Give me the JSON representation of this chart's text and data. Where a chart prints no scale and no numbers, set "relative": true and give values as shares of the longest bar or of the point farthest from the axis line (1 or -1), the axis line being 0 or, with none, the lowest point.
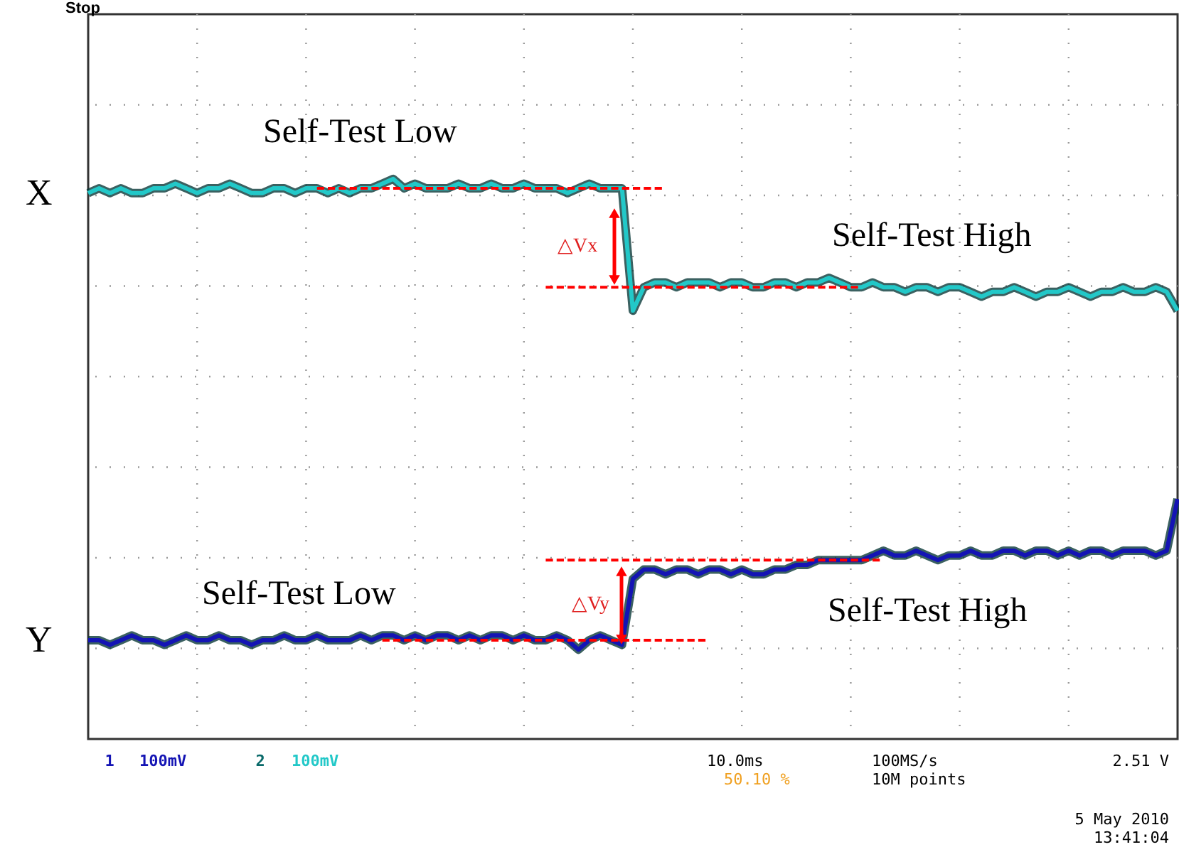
{
  "chart_data": {
    "type": "line",
    "relative": true,
    "grid": true,
    "legend": false,
    "marker": "none",
    "line_style": "solid",
    "categories": [
      null,
      null,
      null,
      null,
      null,
      null,
      null,
      null,
      null,
      null,
      null,
      null,
      null,
      null,
      null,
      null,
      null,
      null,
      null,
      null,
      null,
      null,
      null,
      null,
      null,
      null,
      null,
      null,
      null,
      null,
      null,
      null,
      null,
      null,
      null,
      null,
      null,
      null,
      null,
      null,
      null,
      null,
      null,
      null,
      null,
      null,
      null,
      null,
      null,
      null,
      null,
      null,
      null,
      null,
      null,
      null,
      null,
      null,
      null,
      null,
      null,
      null,
      null,
      null,
      null,
      null,
      null,
      null,
      null,
      null,
      null,
      null,
      null,
      null,
      null,
      null,
      null,
      null,
      null,
      null,
      null,
      null,
      null,
      null,
      null,
      null,
      null,
      null,
      null,
      null,
      null,
      null,
      null,
      null,
      null,
      null,
      null,
      null,
      null,
      null,
      null
    ],
    "series": [
      {
        "name": "X",
        "color": "#22c8c8",
        "values": [
          0.97,
          0.98,
          0.97,
          0.98,
          0.97,
          0.97,
          0.98,
          0.98,
          0.99,
          0.98,
          0.97,
          0.98,
          0.98,
          0.99,
          0.98,
          0.97,
          0.97,
          0.98,
          0.98,
          0.97,
          0.98,
          0.98,
          0.97,
          0.98,
          0.97,
          0.98,
          0.98,
          0.99,
          1.0,
          0.98,
          0.99,
          0.98,
          0.98,
          0.98,
          0.99,
          0.98,
          0.98,
          0.99,
          0.98,
          0.98,
          0.99,
          0.98,
          0.98,
          0.98,
          0.97,
          0.98,
          0.99,
          0.98,
          0.98,
          0.98,
          0.72,
          0.77,
          0.78,
          0.78,
          0.77,
          0.78,
          0.78,
          0.78,
          0.77,
          0.78,
          0.78,
          0.77,
          0.77,
          0.78,
          0.78,
          0.77,
          0.78,
          0.78,
          0.79,
          0.78,
          0.77,
          0.77,
          0.78,
          0.77,
          0.77,
          0.76,
          0.77,
          0.77,
          0.76,
          0.77,
          0.77,
          0.76,
          0.75,
          0.76,
          0.76,
          0.77,
          0.76,
          0.75,
          0.76,
          0.76,
          0.77,
          0.76,
          0.75,
          0.76,
          0.76,
          0.77,
          0.76,
          0.76,
          0.77,
          0.76,
          0.72
        ]
      },
      {
        "name": "Y",
        "color": "#1414b4",
        "values": [
          0.02,
          0.02,
          0.01,
          0.02,
          0.03,
          0.02,
          0.02,
          0.01,
          0.02,
          0.03,
          0.02,
          0.02,
          0.03,
          0.02,
          0.02,
          0.01,
          0.02,
          0.02,
          0.03,
          0.02,
          0.02,
          0.03,
          0.02,
          0.02,
          0.02,
          0.03,
          0.02,
          0.03,
          0.03,
          0.02,
          0.03,
          0.02,
          0.03,
          0.03,
          0.02,
          0.03,
          0.02,
          0.03,
          0.03,
          0.02,
          0.03,
          0.02,
          0.02,
          0.03,
          0.02,
          0.0,
          0.02,
          0.03,
          0.02,
          0.01,
          0.15,
          0.17,
          0.17,
          0.16,
          0.17,
          0.17,
          0.16,
          0.17,
          0.17,
          0.16,
          0.17,
          0.16,
          0.16,
          0.17,
          0.17,
          0.18,
          0.18,
          0.19,
          0.19,
          0.19,
          0.19,
          0.19,
          0.2,
          0.21,
          0.2,
          0.2,
          0.21,
          0.2,
          0.19,
          0.2,
          0.2,
          0.21,
          0.2,
          0.2,
          0.21,
          0.21,
          0.2,
          0.21,
          0.21,
          0.2,
          0.21,
          0.2,
          0.21,
          0.21,
          0.2,
          0.21,
          0.21,
          0.21,
          0.2,
          0.21,
          0.32
        ]
      },
      {
        "color": "#ff0000",
        "line_style": "dashed",
        "values": [
          null,
          null,
          null,
          null,
          null,
          null,
          null,
          null,
          null,
          null,
          null,
          null,
          null,
          null,
          null,
          null,
          null,
          null,
          null,
          null,
          null,
          0.98,
          0.98,
          0.98,
          0.98,
          0.98,
          0.98,
          0.98,
          0.98,
          0.98,
          0.98,
          0.98,
          0.98,
          0.98,
          0.98,
          0.98,
          0.98,
          0.98,
          0.98,
          0.98,
          0.98,
          0.98,
          0.98,
          0.98,
          0.98,
          0.98,
          0.98,
          0.98,
          0.98,
          0.98,
          0.98,
          0.98,
          0.98,
          0.98,
          null,
          null,
          null,
          null,
          null,
          null,
          null,
          null,
          null,
          null,
          null,
          null,
          null,
          null,
          null,
          null,
          null,
          null,
          null,
          null,
          null,
          null,
          null,
          null,
          null,
          null,
          null,
          null,
          null,
          null,
          null,
          null,
          null,
          null,
          null,
          null,
          null,
          null,
          null,
          null,
          null,
          null,
          null,
          null,
          null,
          null,
          null
        ]
      },
      {
        "color": "#ff0000",
        "line_style": "dashed",
        "values": [
          null,
          null,
          null,
          null,
          null,
          null,
          null,
          null,
          null,
          null,
          null,
          null,
          null,
          null,
          null,
          null,
          null,
          null,
          null,
          null,
          null,
          null,
          null,
          null,
          null,
          null,
          null,
          null,
          null,
          null,
          null,
          null,
          null,
          null,
          null,
          null,
          null,
          null,
          null,
          null,
          null,
          null,
          0.77,
          0.77,
          0.77,
          0.77,
          0.77,
          0.77,
          0.77,
          0.77,
          0.77,
          0.77,
          0.77,
          0.77,
          0.77,
          0.77,
          0.77,
          0.77,
          0.77,
          0.77,
          0.77,
          0.77,
          0.77,
          0.77,
          0.77,
          0.77,
          0.77,
          0.77,
          0.77,
          0.77,
          0.77,
          0.77,
          null,
          null,
          null,
          null,
          null,
          null,
          null,
          null,
          null,
          null,
          null,
          null,
          null,
          null,
          null,
          null,
          null,
          null,
          null,
          null,
          null,
          null,
          null,
          null,
          null,
          null,
          null,
          null,
          null
        ]
      },
      {
        "color": "#ff0000",
        "line_style": "dashed",
        "values": [
          null,
          null,
          null,
          null,
          null,
          null,
          null,
          null,
          null,
          null,
          null,
          null,
          null,
          null,
          null,
          null,
          null,
          null,
          null,
          null,
          null,
          null,
          null,
          null,
          null,
          null,
          null,
          null,
          null,
          null,
          null,
          null,
          null,
          null,
          null,
          null,
          null,
          null,
          null,
          null,
          null,
          null,
          0.19,
          0.19,
          0.19,
          0.19,
          0.19,
          0.19,
          0.19,
          0.19,
          0.19,
          0.19,
          0.19,
          0.19,
          0.19,
          0.19,
          0.19,
          0.19,
          0.19,
          0.19,
          0.19,
          0.19,
          0.19,
          0.19,
          0.19,
          0.19,
          0.19,
          0.19,
          0.19,
          0.19,
          0.19,
          0.19,
          0.19,
          0.19,
          null,
          null,
          null,
          null,
          null,
          null,
          null,
          null,
          null,
          null,
          null,
          null,
          null,
          null,
          null,
          null,
          null,
          null,
          null,
          null,
          null,
          null,
          null,
          null,
          null,
          null,
          null
        ]
      },
      {
        "color": "#ff0000",
        "line_style": "dashed",
        "values": [
          null,
          null,
          null,
          null,
          null,
          null,
          null,
          null,
          null,
          null,
          null,
          null,
          null,
          null,
          null,
          null,
          null,
          null,
          null,
          null,
          null,
          null,
          null,
          null,
          null,
          null,
          null,
          0.02,
          0.02,
          0.02,
          0.02,
          0.02,
          0.02,
          0.02,
          0.02,
          0.02,
          0.02,
          0.02,
          0.02,
          0.02,
          0.02,
          0.02,
          0.02,
          0.02,
          0.02,
          0.02,
          0.02,
          0.02,
          0.02,
          0.02,
          0.02,
          0.02,
          0.02,
          0.02,
          0.02,
          0.02,
          0.02,
          0.02,
          null,
          null,
          null,
          null,
          null,
          null,
          null,
          null,
          null,
          null,
          null,
          null,
          null,
          null,
          null,
          null,
          null,
          null,
          null,
          null,
          null,
          null,
          null,
          null,
          null,
          null,
          null,
          null,
          null,
          null,
          null,
          null,
          null,
          null,
          null,
          null,
          null,
          null,
          null,
          null,
          null,
          null,
          null
        ]
      }
    ],
    "annotations": [
      "Stop",
      "Self-Test Low",
      "Self-Test High",
      "Self-Test Low",
      "Self-Test High",
      "△Vx",
      "△Vy",
      "1",
      "100mV",
      "2",
      "100mV",
      "10.0ms",
      "50.10 %",
      "100MS/s",
      "10M points",
      "2.51 V",
      "5 May 2010",
      "13:41:04"
    ]
  }
}
